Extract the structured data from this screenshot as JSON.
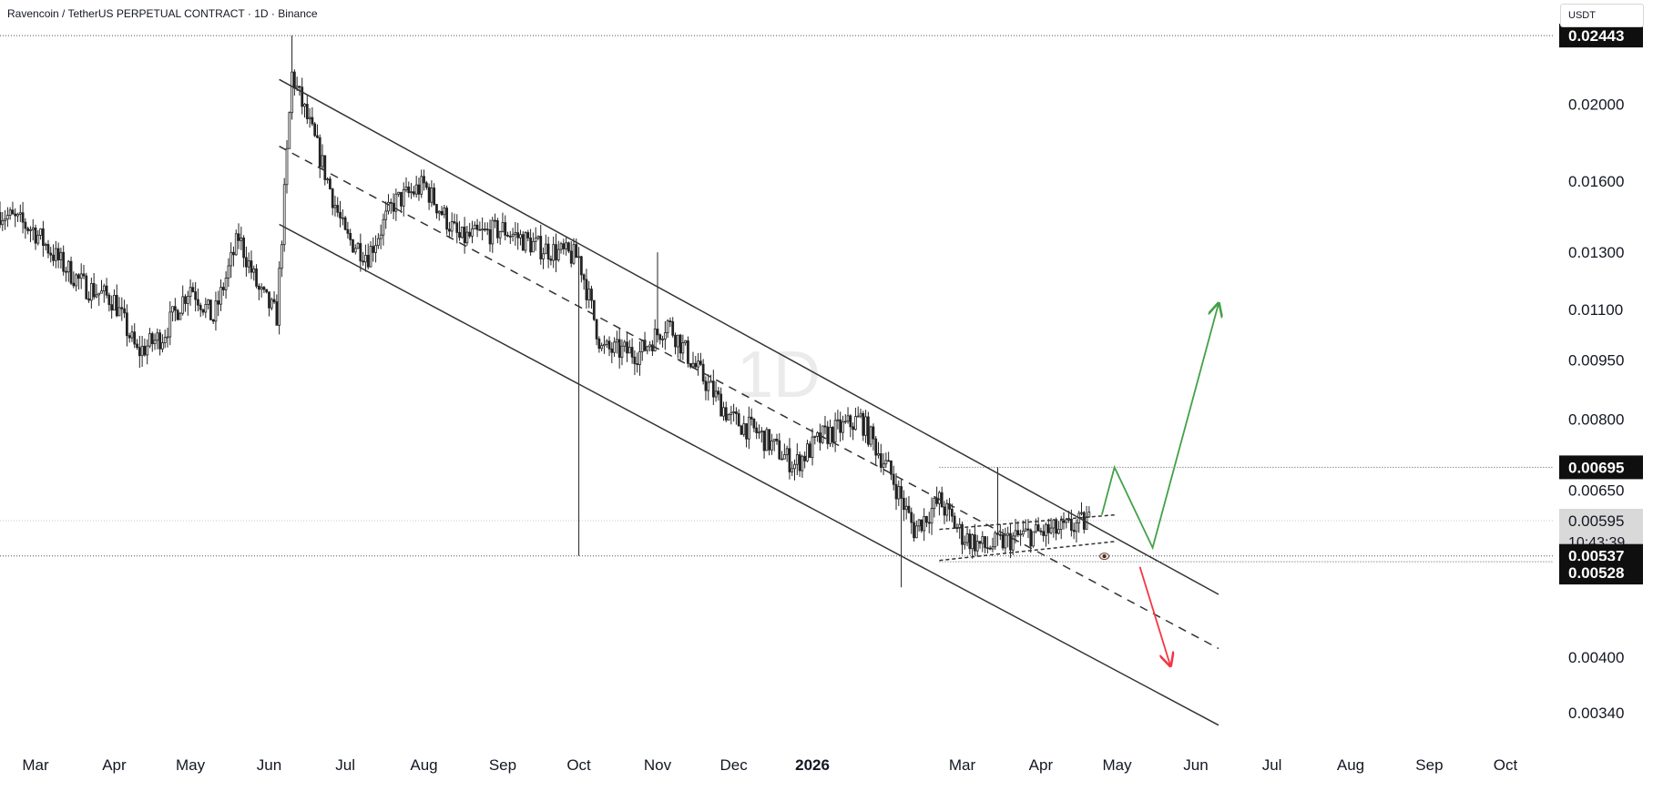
{
  "header": {
    "symbol_title": "Ravencoin / TetherUS PERPETUAL CONTRACT · 1D · Binance",
    "currency": "USDT"
  },
  "watermark": "1D",
  "chart_data": {
    "type": "candlestick",
    "y_axis": {
      "scale": "log",
      "range": [
        0.0031,
        0.0257
      ],
      "tick_labels": [
        "0.02000",
        "0.01600",
        "0.01300",
        "0.01100",
        "0.00950",
        "0.00800",
        "0.00650",
        "0.00400",
        "0.00340"
      ]
    },
    "x_axis": {
      "range": [
        "2025-02-15",
        "2026-10-20"
      ],
      "tick_labels": [
        {
          "label": "Mar",
          "date": "2025-03-01"
        },
        {
          "label": "Apr",
          "date": "2025-04-01"
        },
        {
          "label": "May",
          "date": "2025-05-01"
        },
        {
          "label": "Jun",
          "date": "2025-06-01"
        },
        {
          "label": "Jul",
          "date": "2025-07-01"
        },
        {
          "label": "Aug",
          "date": "2025-08-01"
        },
        {
          "label": "Sep",
          "date": "2025-09-01"
        },
        {
          "label": "Oct",
          "date": "2025-10-01"
        },
        {
          "label": "Nov",
          "date": "2025-11-01"
        },
        {
          "label": "Dec",
          "date": "2025-12-01"
        },
        {
          "label": "2026",
          "date": "2026-01-01"
        },
        {
          "label": "Mar",
          "date": "2026-03-01"
        },
        {
          "label": "Apr",
          "date": "2026-04-01"
        },
        {
          "label": "May",
          "date": "2026-05-01"
        },
        {
          "label": "Jun",
          "date": "2026-06-01"
        },
        {
          "label": "Jul",
          "date": "2026-07-01"
        },
        {
          "label": "Aug",
          "date": "2026-08-01"
        },
        {
          "label": "Sep",
          "date": "2026-09-01"
        },
        {
          "label": "Oct",
          "date": "2026-10-01"
        }
      ]
    },
    "price_badges": [
      {
        "label": "0.02443",
        "value": 0.02443,
        "style": "dark"
      },
      {
        "label": "0.00695",
        "value": 0.00695,
        "style": "dark"
      },
      {
        "label": "0.00595",
        "value": 0.00595,
        "style": "current",
        "countdown": "10:43:39"
      },
      {
        "label": "0.00537",
        "value": 0.00537,
        "style": "dark"
      },
      {
        "label": "0.00528",
        "value": 0.00528,
        "style": "dark"
      }
    ],
    "horizontal_lines": [
      {
        "value": 0.02443,
        "style": "dotted",
        "from": "2025-02-15",
        "to": "2026-10-20"
      },
      {
        "value": 0.00695,
        "style": "dotted",
        "from": "2026-02-20",
        "to": "2026-10-20"
      },
      {
        "value": 0.00595,
        "style": "dotted-light",
        "from": "2025-02-15",
        "to": "2026-10-20"
      },
      {
        "value": 0.00537,
        "style": "dotted",
        "from": "2025-02-15",
        "to": "2026-10-20"
      },
      {
        "value": 0.00528,
        "style": "dotted",
        "from": "2026-02-20",
        "to": "2026-10-20"
      }
    ],
    "drawings": [
      {
        "name": "channel-upper",
        "style": "solid",
        "color": "#333333",
        "points": [
          [
            "2025-06-05",
            0.0215
          ],
          [
            "2026-06-10",
            0.0048
          ]
        ]
      },
      {
        "name": "channel-middle",
        "style": "dashed",
        "color": "#333333",
        "points": [
          [
            "2025-06-05",
            0.0177
          ],
          [
            "2026-06-10",
            0.0041
          ]
        ]
      },
      {
        "name": "channel-lower",
        "style": "solid",
        "color": "#333333",
        "points": [
          [
            "2025-06-05",
            0.0141
          ],
          [
            "2026-06-10",
            0.00328
          ]
        ]
      },
      {
        "name": "wedge-upper",
        "style": "dashed",
        "color": "#333333",
        "points": [
          [
            "2026-02-20",
            0.0058
          ],
          [
            "2026-04-30",
            0.00605
          ]
        ]
      },
      {
        "name": "wedge-lower",
        "style": "dashed",
        "color": "#333333",
        "points": [
          [
            "2026-02-20",
            0.0053
          ],
          [
            "2026-04-30",
            0.0056
          ]
        ]
      },
      {
        "name": "bullish-projection",
        "style": "arrow",
        "color": "#43a047",
        "points": [
          [
            "2026-04-25",
            0.00605
          ],
          [
            "2026-04-30",
            0.00695
          ],
          [
            "2026-05-15",
            0.0055
          ],
          [
            "2026-06-10",
            0.0112
          ]
        ]
      },
      {
        "name": "bearish-projection",
        "style": "arrow",
        "color": "#f23645",
        "points": [
          [
            "2026-05-10",
            0.0052
          ],
          [
            "2026-05-22",
            0.0039
          ]
        ]
      }
    ],
    "price_path": [
      [
        "2025-02-15",
        0.0146
      ],
      [
        "2025-02-28",
        0.0139
      ],
      [
        "2025-03-10",
        0.0127
      ],
      [
        "2025-03-20",
        0.0118
      ],
      [
        "2025-04-01",
        0.0113
      ],
      [
        "2025-04-10",
        0.0097
      ],
      [
        "2025-04-20",
        0.0102
      ],
      [
        "2025-05-01",
        0.0118
      ],
      [
        "2025-05-10",
        0.0107
      ],
      [
        "2025-05-20",
        0.0136
      ],
      [
        "2025-05-28",
        0.0116
      ],
      [
        "2025-06-04",
        0.0108
      ],
      [
        "2025-06-10",
        0.0218
      ],
      [
        "2025-06-20",
        0.0176
      ],
      [
        "2025-07-01",
        0.0136
      ],
      [
        "2025-07-10",
        0.0129
      ],
      [
        "2025-07-20",
        0.015
      ],
      [
        "2025-08-01",
        0.0158
      ],
      [
        "2025-08-15",
        0.0135
      ],
      [
        "2025-09-01",
        0.0139
      ],
      [
        "2025-09-15",
        0.0132
      ],
      [
        "2025-10-01",
        0.0128
      ],
      [
        "2025-10-10",
        0.0098
      ],
      [
        "2025-10-25",
        0.0097
      ],
      [
        "2025-11-05",
        0.0106
      ],
      [
        "2025-11-15",
        0.0094
      ],
      [
        "2025-11-30",
        0.008
      ],
      [
        "2025-12-10",
        0.0077
      ],
      [
        "2025-12-25",
        0.007
      ],
      [
        "2026-01-05",
        0.0076
      ],
      [
        "2026-01-20",
        0.008
      ],
      [
        "2026-02-01",
        0.0068
      ],
      [
        "2026-02-10",
        0.0058
      ],
      [
        "2026-02-20",
        0.0063
      ],
      [
        "2026-03-01",
        0.0057
      ],
      [
        "2026-03-10",
        0.0055
      ],
      [
        "2026-03-25",
        0.0057
      ],
      [
        "2026-04-10",
        0.0058
      ],
      [
        "2026-04-20",
        0.00595
      ]
    ],
    "wick_extremes": [
      {
        "date": "2025-06-10",
        "high": 0.02443
      },
      {
        "date": "2025-10-01",
        "low": 0.00537
      },
      {
        "date": "2025-11-01",
        "high": 0.013
      },
      {
        "date": "2026-02-05",
        "low": 0.0049
      },
      {
        "date": "2026-03-15",
        "high": 0.00695
      }
    ]
  }
}
